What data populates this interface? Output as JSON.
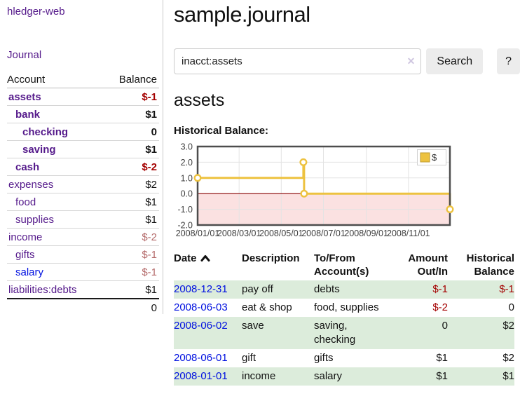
{
  "app": {
    "title": "hledger-web",
    "nav": {
      "journal": "Journal"
    }
  },
  "sidebar": {
    "columns": {
      "account": "Account",
      "balance": "Balance"
    },
    "accounts": [
      {
        "name": "assets",
        "balance": "$-1",
        "indent": 0,
        "bold": true,
        "negative": true
      },
      {
        "name": "bank",
        "balance": "$1",
        "indent": 1,
        "bold": true,
        "negative": false
      },
      {
        "name": "checking",
        "balance": "0",
        "indent": 2,
        "bold": true,
        "negative": false
      },
      {
        "name": "saving",
        "balance": "$1",
        "indent": 2,
        "bold": true,
        "negative": false
      },
      {
        "name": "cash",
        "balance": "$-2",
        "indent": 1,
        "bold": true,
        "negative": true
      },
      {
        "name": "expenses",
        "balance": "$2",
        "indent": 0,
        "bold": false,
        "negative": false
      },
      {
        "name": "food",
        "balance": "$1",
        "indent": 1,
        "bold": false,
        "negative": false
      },
      {
        "name": "supplies",
        "balance": "$1",
        "indent": 1,
        "bold": false,
        "negative": false
      },
      {
        "name": "income",
        "balance": "$-2",
        "indent": 0,
        "bold": false,
        "negative": true
      },
      {
        "name": "gifts",
        "balance": "$-1",
        "indent": 1,
        "bold": false,
        "negative": true
      },
      {
        "name": "salary",
        "balance": "$-1",
        "indent": 1,
        "bold": false,
        "negative": true,
        "link_color": "#0010e0"
      },
      {
        "name": "liabilities:debts",
        "balance": "$1",
        "indent": 0,
        "bold": false,
        "negative": false
      }
    ],
    "total": "0"
  },
  "main": {
    "title": "sample.journal",
    "search": {
      "value": "inacct:assets",
      "clear_icon": "✕",
      "search_button": "Search",
      "help_button": "?"
    },
    "account_heading": "assets",
    "chart_heading": "Historical Balance:"
  },
  "chart_data": {
    "type": "line",
    "step": true,
    "title": "Historical Balance:",
    "series": [
      {
        "name": "$",
        "color": "#edc240",
        "points": [
          [
            "2008-01-01",
            1
          ],
          [
            "2008-06-02",
            2
          ],
          [
            "2008-06-03",
            0
          ],
          [
            "2008-12-31",
            -1
          ]
        ]
      }
    ],
    "x_start": "2008-01-01",
    "x_end": "2008-12-31",
    "x_ticks": [
      "2008/01/01",
      "2008/03/01",
      "2008/05/01",
      "2008/07/01",
      "2008/09/01",
      "2008/11/01"
    ],
    "y_ticks": [
      3.0,
      2.0,
      1.0,
      0.0,
      -1.0,
      -2.0
    ],
    "ylim": [
      -2,
      3
    ],
    "legend": "$",
    "legend_position": "top-right",
    "grid": true,
    "zero_line_color": "#8b0000",
    "negative_region_color": "#fbe1e1"
  },
  "register": {
    "columns": [
      {
        "line1": "Date",
        "line2": "",
        "align": "left",
        "sorted": "ascending"
      },
      {
        "line1": "Description",
        "line2": "",
        "align": "left"
      },
      {
        "line1": "To/From",
        "line2": "Account(s)",
        "align": "left"
      },
      {
        "line1": "Amount",
        "line2": "Out/In",
        "align": "right"
      },
      {
        "line1": "Historical",
        "line2": "Balance",
        "align": "right"
      }
    ],
    "rows": [
      {
        "date": "2008-12-31",
        "description": "pay off",
        "accounts": "debts",
        "amount": "$-1",
        "balance": "$-1"
      },
      {
        "date": "2008-06-03",
        "description": "eat & shop",
        "accounts": "food, supplies",
        "amount": "$-2",
        "balance": "0"
      },
      {
        "date": "2008-06-02",
        "description": "save",
        "accounts": "saving, checking",
        "amount": "0",
        "balance": "$2"
      },
      {
        "date": "2008-06-01",
        "description": "gift",
        "accounts": "gifts",
        "amount": "$1",
        "balance": "$2"
      },
      {
        "date": "2008-01-01",
        "description": "income",
        "accounts": "salary",
        "amount": "$1",
        "balance": "$1"
      }
    ]
  },
  "colors": {
    "link_purple": "#551a8b",
    "link_blue": "#0010e0",
    "negative_strong": "#a40000",
    "negative_soft": "#b46a6a",
    "row_stripe_green": "#dcecdb",
    "series_yellow": "#edc240",
    "chart_border": "#4d4d4d"
  }
}
